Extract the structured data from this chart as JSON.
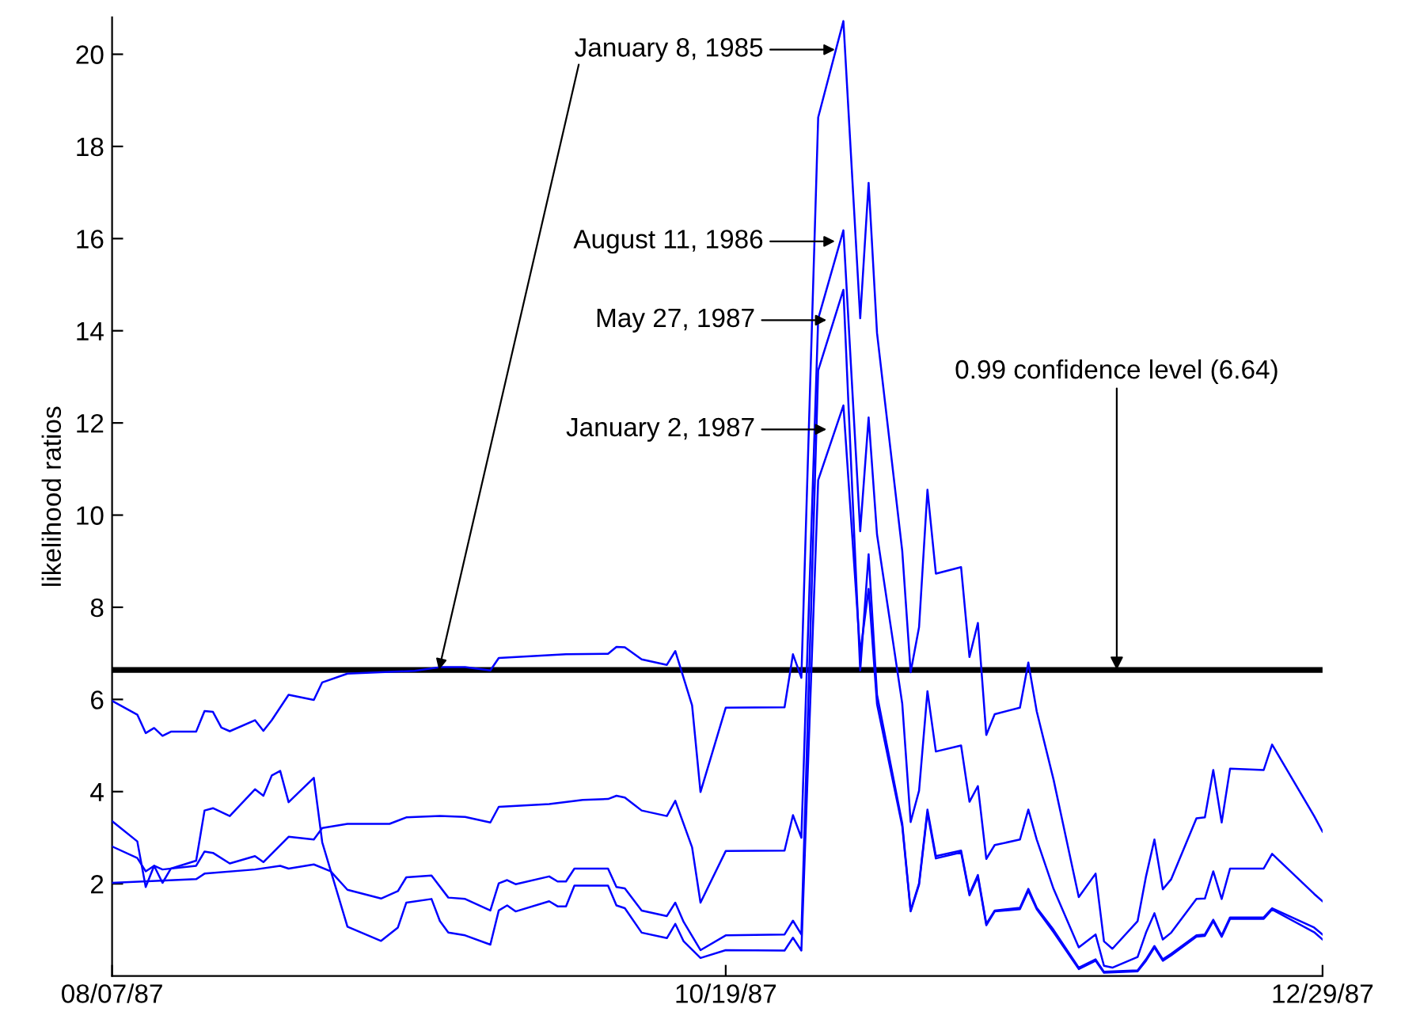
{
  "chart_data": {
    "type": "line",
    "ylabel": "likelihood ratios",
    "xlim": [
      "1987-08-07",
      "1987-12-29"
    ],
    "xticks": [
      {
        "value": "1987-08-07",
        "label": "08/07/87"
      },
      {
        "value": "1987-10-19",
        "label": "10/19/87"
      },
      {
        "value": "1987-12-29",
        "label": "12/29/87"
      }
    ],
    "ylim": [
      0,
      20.8
    ],
    "yticks": [
      2,
      4,
      6,
      8,
      10,
      12,
      14,
      16,
      18,
      20
    ],
    "grid": false,
    "legend": false,
    "marker": "none",
    "line_style": "solid",
    "series": [
      {
        "color": "#0000ff",
        "x": [
          "1987-08-07",
          "1987-08-10",
          "1987-08-11",
          "1987-08-12",
          "1987-08-13",
          "1987-08-14",
          "1987-08-17",
          "1987-08-18",
          "1987-08-19",
          "1987-08-20",
          "1987-08-21",
          "1987-08-24",
          "1987-08-25",
          "1987-08-26",
          "1987-08-28",
          "1987-08-31",
          "1987-09-01",
          "1987-09-04",
          "1987-09-12",
          "1987-09-15",
          "1987-09-18",
          "1987-09-21",
          "1987-09-22",
          "1987-09-30",
          "1987-10-05",
          "1987-10-06",
          "1987-10-07",
          "1987-10-09",
          "1987-10-12",
          "1987-10-13",
          "1987-10-15",
          "1987-10-16",
          "1987-10-19",
          "1987-10-26",
          "1987-10-27",
          "1987-10-28",
          "1987-10-30",
          "1987-11-02",
          "1987-11-04",
          "1987-11-05",
          "1987-11-06",
          "1987-11-09",
          "1987-11-10",
          "1987-11-11",
          "1987-11-12",
          "1987-11-13",
          "1987-11-16",
          "1987-11-17",
          "1987-11-18",
          "1987-11-19",
          "1987-11-20",
          "1987-11-23",
          "1987-11-24",
          "1987-11-25",
          "1987-11-27",
          "1987-11-30",
          "1987-12-02",
          "1987-12-03",
          "1987-12-04",
          "1987-12-07",
          "1987-12-08",
          "1987-12-09",
          "1987-12-10",
          "1987-12-11",
          "1987-12-14",
          "1987-12-15",
          "1987-12-16",
          "1987-12-17",
          "1987-12-18",
          "1987-12-22",
          "1987-12-23",
          "1987-12-28",
          "1987-12-29"
        ],
        "values": [
          5.97,
          5.67,
          5.27,
          5.38,
          5.21,
          5.3,
          5.3,
          5.75,
          5.73,
          5.39,
          5.31,
          5.55,
          5.32,
          5.55,
          6.1,
          5.99,
          6.37,
          6.56,
          6.62,
          6.7,
          6.7,
          6.63,
          6.9,
          6.98,
          6.99,
          7.14,
          7.13,
          6.87,
          6.75,
          7.05,
          5.87,
          3.99,
          5.82,
          5.83,
          6.98,
          6.47,
          18.63,
          20.72,
          14.27,
          17.21,
          13.95,
          9.22,
          6.59,
          7.57,
          10.55,
          8.73,
          8.87,
          6.92,
          7.66,
          5.23,
          5.68,
          5.82,
          6.8,
          5.74,
          4.26,
          1.71,
          2.22,
          0.75,
          0.59,
          1.19,
          2.16,
          2.96,
          1.88,
          2.1,
          3.42,
          3.44,
          4.47,
          3.33,
          4.5,
          4.47,
          5.02,
          3.47,
          3.13
        ]
      },
      {
        "color": "#0000ff",
        "x": [
          "1987-08-07",
          "1987-08-10",
          "1987-08-11",
          "1987-08-12",
          "1987-08-13",
          "1987-08-17",
          "1987-08-18",
          "1987-08-19",
          "1987-08-21",
          "1987-08-24",
          "1987-08-25",
          "1987-08-28",
          "1987-08-31",
          "1987-09-01",
          "1987-09-04",
          "1987-09-09",
          "1987-09-11",
          "1987-09-15",
          "1987-09-18",
          "1987-09-21",
          "1987-09-22",
          "1987-09-28",
          "1987-10-02",
          "1987-10-05",
          "1987-10-06",
          "1987-10-07",
          "1987-10-09",
          "1987-10-12",
          "1987-10-13",
          "1987-10-15",
          "1987-10-16",
          "1987-10-19",
          "1987-10-26",
          "1987-10-27",
          "1987-10-28",
          "1987-10-30",
          "1987-11-02",
          "1987-11-04",
          "1987-11-05",
          "1987-11-06",
          "1987-11-09",
          "1987-11-10",
          "1987-11-11",
          "1987-11-12",
          "1987-11-13",
          "1987-11-16",
          "1987-11-17",
          "1987-11-18",
          "1987-11-19",
          "1987-11-20",
          "1987-11-23",
          "1987-11-24",
          "1987-11-25",
          "1987-11-27",
          "1987-11-30",
          "1987-12-02",
          "1987-12-03",
          "1987-12-04",
          "1987-12-07",
          "1987-12-08",
          "1987-12-09",
          "1987-12-10",
          "1987-12-11",
          "1987-12-14",
          "1987-12-15",
          "1987-12-16",
          "1987-12-17",
          "1987-12-18",
          "1987-12-22",
          "1987-12-23",
          "1987-12-28",
          "1987-12-29"
        ],
        "values": [
          2.81,
          2.56,
          2.27,
          2.39,
          2.31,
          2.39,
          2.7,
          2.67,
          2.44,
          2.6,
          2.47,
          3.02,
          2.96,
          3.21,
          3.3,
          3.3,
          3.44,
          3.47,
          3.45,
          3.33,
          3.67,
          3.73,
          3.82,
          3.84,
          3.91,
          3.87,
          3.59,
          3.47,
          3.8,
          2.79,
          1.59,
          2.71,
          2.72,
          3.49,
          3.0,
          14.26,
          16.18,
          9.65,
          12.12,
          9.58,
          5.91,
          3.34,
          4.02,
          6.18,
          4.87,
          5.0,
          3.78,
          4.12,
          2.54,
          2.84,
          2.96,
          3.61,
          2.96,
          1.89,
          0.62,
          0.9,
          0.22,
          0.18,
          0.41,
          0.94,
          1.36,
          0.79,
          0.94,
          1.67,
          1.68,
          2.27,
          1.67,
          2.33,
          2.33,
          2.65,
          1.78,
          1.62
        ]
      },
      {
        "color": "#0000ff",
        "x": [
          "1987-08-07",
          "1987-08-17",
          "1987-08-18",
          "1987-08-24",
          "1987-08-27",
          "1987-08-28",
          "1987-08-31",
          "1987-09-02",
          "1987-09-04",
          "1987-09-08",
          "1987-09-10",
          "1987-09-11",
          "1987-09-14",
          "1987-09-16",
          "1987-09-18",
          "1987-09-21",
          "1987-09-22",
          "1987-09-23",
          "1987-09-24",
          "1987-09-28",
          "1987-09-29",
          "1987-09-30",
          "1987-10-01",
          "1987-10-05",
          "1987-10-06",
          "1987-10-07",
          "1987-10-09",
          "1987-10-12",
          "1987-10-13",
          "1987-10-14",
          "1987-10-16",
          "1987-10-19",
          "1987-10-26",
          "1987-10-27",
          "1987-10-28",
          "1987-10-30",
          "1987-11-02",
          "1987-11-04",
          "1987-11-05",
          "1987-11-06",
          "1987-11-09",
          "1987-11-10",
          "1987-11-11",
          "1987-11-12",
          "1987-11-13",
          "1987-11-16",
          "1987-11-17",
          "1987-11-18",
          "1987-11-19",
          "1987-11-20",
          "1987-11-23",
          "1987-11-24",
          "1987-11-25",
          "1987-11-27",
          "1987-11-30",
          "1987-12-02",
          "1987-12-03",
          "1987-12-07",
          "1987-12-08",
          "1987-12-09",
          "1987-12-10",
          "1987-12-11",
          "1987-12-14",
          "1987-12-15",
          "1987-12-16",
          "1987-12-17",
          "1987-12-18",
          "1987-12-22",
          "1987-12-23",
          "1987-12-28",
          "1987-12-29"
        ],
        "values": [
          2.02,
          2.1,
          2.22,
          2.31,
          2.39,
          2.33,
          2.42,
          2.27,
          1.87,
          1.68,
          1.84,
          2.14,
          2.18,
          1.7,
          1.67,
          1.42,
          2.01,
          2.08,
          1.99,
          2.16,
          2.05,
          2.05,
          2.33,
          2.33,
          1.93,
          1.9,
          1.42,
          1.3,
          1.59,
          1.17,
          0.56,
          0.88,
          0.9,
          1.2,
          0.9,
          13.14,
          14.89,
          6.63,
          9.15,
          6.1,
          3.31,
          1.42,
          2.01,
          3.61,
          2.6,
          2.72,
          1.78,
          2.19,
          1.13,
          1.42,
          1.48,
          1.89,
          1.48,
          1.0,
          0.18,
          0.36,
          0.09,
          0.12,
          0.36,
          0.65,
          0.36,
          0.48,
          0.88,
          0.9,
          1.22,
          0.88,
          1.27,
          1.27,
          1.47,
          1.05,
          0.9
        ]
      },
      {
        "color": "#0000ff",
        "x": [
          "1987-08-07",
          "1987-08-10",
          "1987-08-11",
          "1987-08-12",
          "1987-08-13",
          "1987-08-14",
          "1987-08-17",
          "1987-08-18",
          "1987-08-19",
          "1987-08-21",
          "1987-08-24",
          "1987-08-25",
          "1987-08-26",
          "1987-08-27",
          "1987-08-28",
          "1987-08-31",
          "1987-09-01",
          "1987-09-04",
          "1987-09-08",
          "1987-09-10",
          "1987-09-11",
          "1987-09-14",
          "1987-09-15",
          "1987-09-16",
          "1987-09-18",
          "1987-09-21",
          "1987-09-22",
          "1987-09-23",
          "1987-09-24",
          "1987-09-28",
          "1987-09-29",
          "1987-09-30",
          "1987-10-01",
          "1987-10-05",
          "1987-10-06",
          "1987-10-07",
          "1987-10-09",
          "1987-10-12",
          "1987-10-13",
          "1987-10-14",
          "1987-10-16",
          "1987-10-19",
          "1987-10-26",
          "1987-10-27",
          "1987-10-28",
          "1987-10-30",
          "1987-11-02",
          "1987-11-04",
          "1987-11-05",
          "1987-11-06",
          "1987-11-09",
          "1987-11-10",
          "1987-11-11",
          "1987-11-12",
          "1987-11-13",
          "1987-11-16",
          "1987-11-17",
          "1987-11-18",
          "1987-11-19",
          "1987-11-20",
          "1987-11-23",
          "1987-11-24",
          "1987-11-25",
          "1987-11-27",
          "1987-11-30",
          "1987-12-02",
          "1987-12-03",
          "1987-12-07",
          "1987-12-08",
          "1987-12-09",
          "1987-12-10",
          "1987-12-11",
          "1987-12-14",
          "1987-12-15",
          "1987-12-16",
          "1987-12-17",
          "1987-12-18",
          "1987-12-22",
          "1987-12-23",
          "1987-12-28",
          "1987-12-29"
        ],
        "values": [
          3.36,
          2.92,
          1.93,
          2.39,
          2.02,
          2.33,
          2.5,
          3.59,
          3.64,
          3.47,
          4.05,
          3.91,
          4.35,
          4.45,
          3.77,
          4.3,
          2.9,
          1.07,
          0.76,
          1.05,
          1.59,
          1.67,
          1.19,
          0.94,
          0.88,
          0.68,
          1.42,
          1.53,
          1.4,
          1.62,
          1.51,
          1.51,
          1.96,
          1.96,
          1.53,
          1.47,
          0.94,
          0.82,
          1.13,
          0.75,
          0.39,
          0.56,
          0.55,
          0.83,
          0.55,
          10.76,
          12.38,
          7.0,
          8.4,
          5.9,
          3.25,
          1.4,
          1.98,
          3.55,
          2.55,
          2.68,
          1.75,
          2.15,
          1.1,
          1.4,
          1.45,
          1.85,
          1.45,
          0.95,
          0.15,
          0.33,
          0.07,
          0.1,
          0.33,
          0.62,
          0.33,
          0.45,
          0.85,
          0.87,
          1.19,
          0.85,
          1.24,
          1.24,
          1.44,
          0.95,
          0.79
        ]
      }
    ],
    "ref_lines": [
      {
        "axis": "y",
        "value": 6.64,
        "label": "0.99 confidence level (6.64)",
        "color": "#000000"
      }
    ],
    "annotations": [
      {
        "text": "January 8, 1985",
        "x": "1987-11-01",
        "y": 20.1
      },
      {
        "text": "August 11, 1986",
        "x": "1987-11-01",
        "y": 15.94
      },
      {
        "text": "May 27, 1987",
        "x": "1987-10-31",
        "y": 14.23
      },
      {
        "text": "January 2, 1987",
        "x": "1987-10-31",
        "y": 11.86
      }
    ]
  }
}
